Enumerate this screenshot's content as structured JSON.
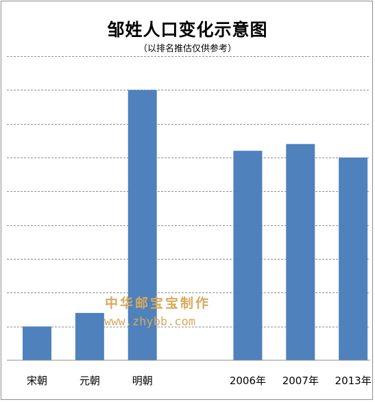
{
  "chart_data": {
    "type": "bar",
    "title": "邹姓人口变化示意图",
    "subtitle": "（以排名推估仅供参考）",
    "categories": [
      "宋朝",
      "元朝",
      "明朝",
      "",
      "2006年",
      "2007年",
      "2013年"
    ],
    "values": [
      1.0,
      1.4,
      8.0,
      null,
      6.2,
      6.4,
      6.0
    ],
    "ylim": [
      0,
      9
    ],
    "grid": true,
    "gridline_style": "dashed",
    "bar_color": "#4f81bd"
  },
  "watermark": {
    "text": "中华邮宝宝制作",
    "url": "www.zhybb.com"
  }
}
